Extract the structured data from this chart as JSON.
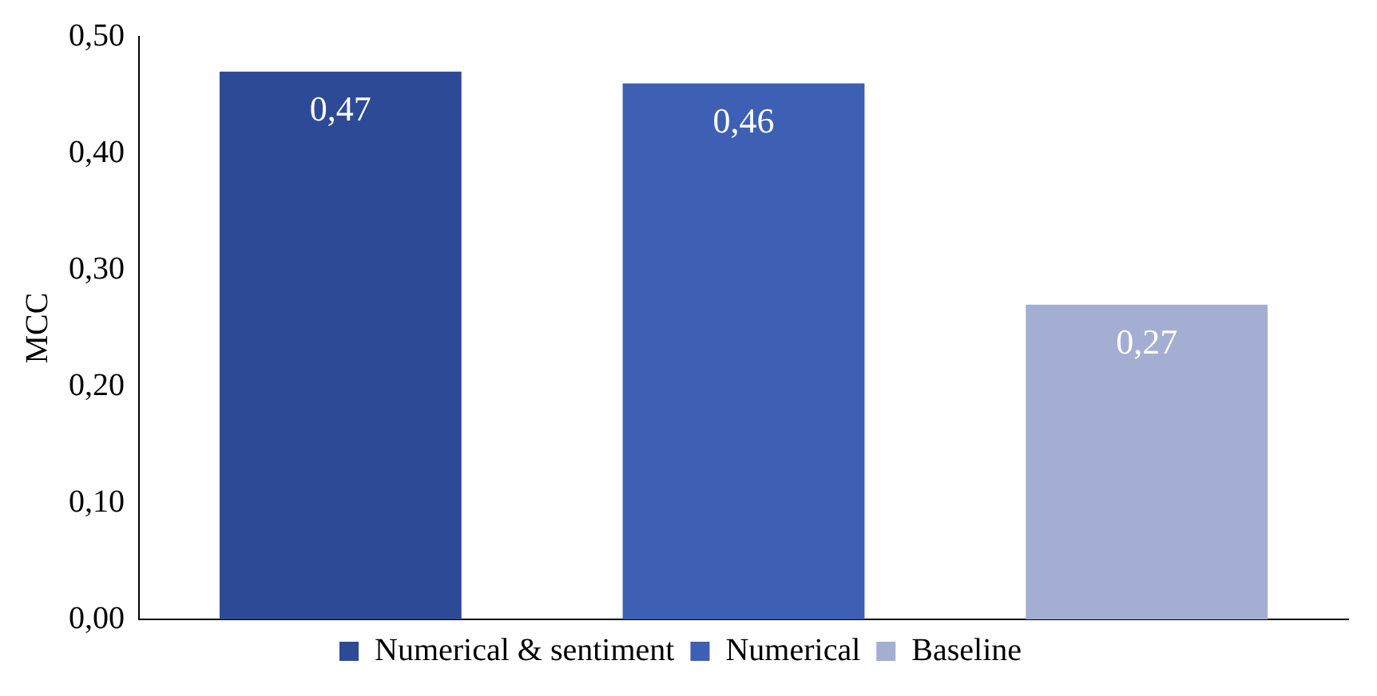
{
  "chart_data": {
    "type": "bar",
    "ylabel": "MCC",
    "categories": [
      null,
      null,
      null
    ],
    "series": [
      {
        "name": "Numerical & sentiment",
        "color": "#2c4a96",
        "values": [
          0.47,
          null,
          null
        ],
        "value_labels": [
          "0,47",
          null,
          null
        ]
      },
      {
        "name": "Numerical",
        "color": "#3d5fb4",
        "values": [
          null,
          0.46,
          null
        ],
        "value_labels": [
          null,
          "0,46",
          null
        ]
      },
      {
        "name": "Baseline",
        "color": "#a3aed2",
        "values": [
          null,
          null,
          0.27
        ],
        "value_labels": [
          null,
          null,
          "0,27"
        ]
      }
    ],
    "ylim": [
      0,
      0.5
    ],
    "yticks": [
      {
        "value": 0,
        "label": "0,00"
      },
      {
        "value": 0.1,
        "label": "0,10"
      },
      {
        "value": 0.2,
        "label": "0,20"
      },
      {
        "value": 0.3,
        "label": "0,30"
      },
      {
        "value": 0.4,
        "label": "0,40"
      },
      {
        "value": 0.5,
        "label": "0,50"
      }
    ],
    "grid": false,
    "legend": "bottom"
  }
}
